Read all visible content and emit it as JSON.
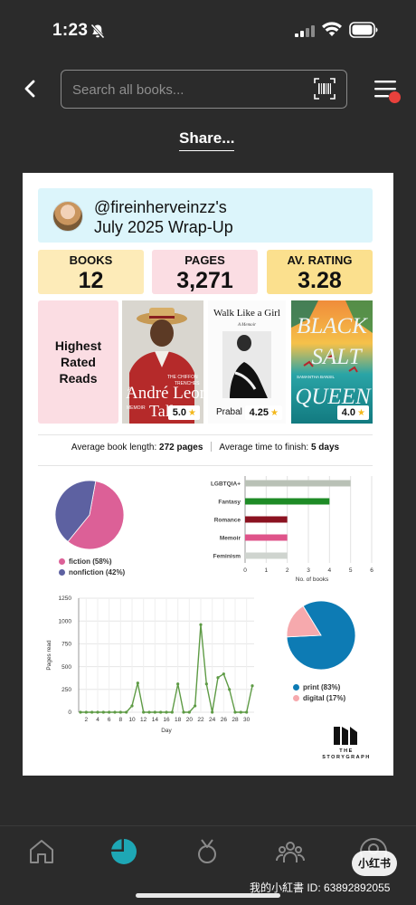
{
  "status": {
    "time": "1:23"
  },
  "search": {
    "placeholder": "Search all books..."
  },
  "share_label": "Share...",
  "header": {
    "username": "@fireinherveinzz's",
    "title": "July 2025 Wrap-Up"
  },
  "stats": [
    {
      "label": "BOOKS",
      "value": "12",
      "color": "#fdebb8"
    },
    {
      "label": "PAGES",
      "value": "3,271",
      "color": "#fbdde3"
    },
    {
      "label": "AV. RATING",
      "value": "3.28",
      "color": "#fbe08e"
    }
  ],
  "highest_rated": {
    "label": "Highest Rated Reads",
    "books": [
      {
        "rating": "5.0",
        "cover_lines": [
          "THE CHIFFON",
          "TRENCHES",
          "A",
          "André Leon",
          "MEMOIR",
          "Talley"
        ]
      },
      {
        "rating": "4.25",
        "cover_lines": [
          "Walk Like a Girl",
          "A Memoir",
          "Prabal"
        ]
      },
      {
        "rating": "4.0",
        "cover_lines": [
          "BLACK",
          "SALT",
          "QUEEN",
          "SAMANTHA BANSIL"
        ]
      }
    ]
  },
  "averages": {
    "book_length_label": "Average book length:",
    "book_length_value": "272 pages",
    "time_label": "Average time to finish:",
    "time_value": "5 days"
  },
  "chart_data": [
    {
      "type": "pie",
      "slices": [
        {
          "label": "fiction (58%)",
          "value": 58,
          "color": "#dc6097"
        },
        {
          "label": "nonfiction (42%)",
          "value": 42,
          "color": "#5d61a1"
        }
      ]
    },
    {
      "type": "bar",
      "orientation": "horizontal",
      "categories": [
        "LGBTQIA+",
        "Fantasy",
        "Romance",
        "Memoir",
        "Feminism"
      ],
      "values": [
        5,
        4,
        2,
        2,
        2
      ],
      "colors": [
        "#b9c1b6",
        "#1e8b26",
        "#8b1220",
        "#df548a",
        "#cfd4cf"
      ],
      "xlim": [
        0,
        6
      ],
      "xticks": [
        "0",
        "1",
        "2",
        "3",
        "4",
        "5",
        "6"
      ],
      "xlabel": "No. of books",
      "grid": true
    },
    {
      "type": "line",
      "x": [
        1,
        2,
        3,
        4,
        5,
        6,
        7,
        8,
        9,
        10,
        11,
        12,
        13,
        14,
        15,
        16,
        17,
        18,
        19,
        20,
        21,
        22,
        23,
        24,
        25,
        26,
        27,
        28,
        29,
        30,
        31
      ],
      "y": [
        0,
        0,
        0,
        0,
        0,
        0,
        0,
        0,
        0,
        70,
        320,
        0,
        0,
        0,
        0,
        0,
        0,
        310,
        0,
        0,
        70,
        960,
        310,
        0,
        380,
        420,
        250,
        0,
        0,
        0,
        290
      ],
      "xticks": [
        "2",
        "4",
        "6",
        "8",
        "10",
        "12",
        "14",
        "16",
        "18",
        "20",
        "22",
        "24",
        "26",
        "28",
        "30"
      ],
      "yticks": [
        "0",
        "250",
        "500",
        "750",
        "1000",
        "1250"
      ],
      "ylim": [
        0,
        1250
      ],
      "xlabel": "Day",
      "ylabel": "Pages read",
      "color": "#5e9b45",
      "grid": true
    },
    {
      "type": "pie",
      "slices": [
        {
          "label": "print (83%)",
          "value": 83,
          "color": "#0d7bb4"
        },
        {
          "label": "digital (17%)",
          "value": 17,
          "color": "#f6a9ad"
        }
      ]
    }
  ],
  "logo": {
    "line1": "THE",
    "line2": "STORYGRAPH"
  },
  "nav": [
    "home-icon",
    "stats-icon",
    "challenges-icon",
    "community-icon",
    "profile-icon"
  ],
  "watermark": {
    "badge": "小红书",
    "id": "我的小紅書 ID: 63892892055"
  }
}
